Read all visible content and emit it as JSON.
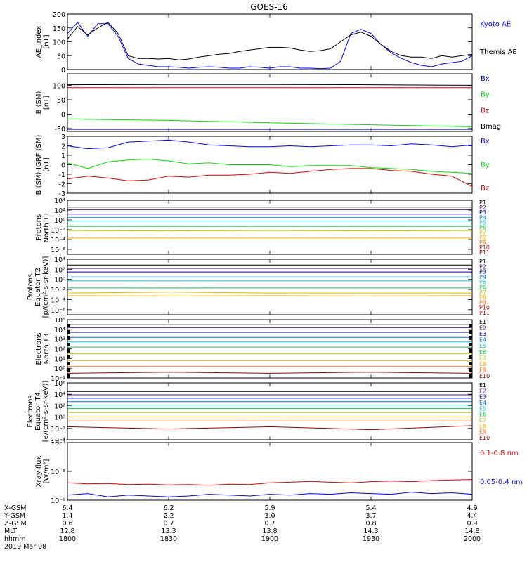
{
  "title": "GOES-16",
  "x_tick_labels": [
    "1800",
    "1830",
    "1900",
    "1930",
    "2000"
  ],
  "footer": {
    "rows": [
      {
        "label": "X-GSM",
        "values": [
          "6.4",
          "6.2",
          "5.9",
          "5.4",
          "4.9"
        ]
      },
      {
        "label": "Y-GSM",
        "values": [
          "1.4",
          "2.2",
          "3.0",
          "3.7",
          "4.4"
        ]
      },
      {
        "label": "Z-GSM",
        "values": [
          "0.6",
          "0.7",
          "0.7",
          "0.8",
          "0.9"
        ]
      },
      {
        "label": "MLT",
        "values": [
          "12.8",
          "13.3",
          "13.8",
          "14.3",
          "14.8"
        ]
      },
      {
        "label": "hhmm",
        "values": [
          "1800",
          "1830",
          "1900",
          "1930",
          "2000"
        ]
      }
    ],
    "date": "2019 Mar 08"
  },
  "chart_data": [
    {
      "type": "line",
      "ylabel": [
        "AE_index",
        "[nT]"
      ],
      "ylim": [
        0,
        200
      ],
      "yticks": [
        "0",
        "50",
        "100",
        "150",
        "200"
      ],
      "x": [
        "1800",
        "1803",
        "1806",
        "1809",
        "1812",
        "1815",
        "1818",
        "1821",
        "1824",
        "1827",
        "1830",
        "1833",
        "1836",
        "1839",
        "1842",
        "1845",
        "1848",
        "1851",
        "1854",
        "1857",
        "1900",
        "1903",
        "1906",
        "1909",
        "1912",
        "1915",
        "1918",
        "1921",
        "1924",
        "1927",
        "1930",
        "1933",
        "1936",
        "1939",
        "1942",
        "1945",
        "1948",
        "1951",
        "1954",
        "1957",
        "2000"
      ],
      "series": [
        {
          "name": "Kyoto AE",
          "color": "#0000ff",
          "values": [
            130,
            170,
            120,
            165,
            165,
            120,
            40,
            20,
            15,
            10,
            10,
            8,
            5,
            8,
            10,
            8,
            5,
            5,
            10,
            8,
            5,
            10,
            10,
            5,
            5,
            3,
            5,
            30,
            130,
            145,
            130,
            90,
            60,
            40,
            25,
            15,
            10,
            20,
            25,
            30,
            50
          ]
        },
        {
          "name": "Themis AE",
          "color": "#000000",
          "values": [
            110,
            155,
            125,
            150,
            170,
            130,
            50,
            40,
            40,
            38,
            40,
            35,
            38,
            45,
            50,
            55,
            58,
            65,
            70,
            75,
            80,
            80,
            78,
            70,
            65,
            68,
            75,
            100,
            125,
            135,
            120,
            90,
            65,
            50,
            45,
            45,
            40,
            50,
            45,
            50,
            55
          ]
        }
      ]
    },
    {
      "type": "line",
      "ylabel": [
        "B (SM)",
        "[nT]"
      ],
      "ylim": [
        -60,
        140
      ],
      "yticks": [
        "-50",
        "0",
        "50",
        "100"
      ],
      "x": [
        "1800",
        "1830",
        "1900",
        "1930",
        "2000"
      ],
      "series": [
        {
          "name": "Bx",
          "color": "#0000ff",
          "values": [
            -53,
            -53,
            -53,
            -53,
            -53
          ]
        },
        {
          "name": "By",
          "color": "#00dd00",
          "values": [
            -17,
            -22,
            -30,
            -37,
            -44
          ]
        },
        {
          "name": "Bz",
          "color": "#dd0000",
          "values": [
            92,
            92,
            92,
            92,
            92
          ]
        },
        {
          "name": "Bmag",
          "color": "#000000",
          "values": [
            102,
            103,
            103,
            102,
            100
          ]
        }
      ]
    },
    {
      "type": "line",
      "ylabel": [
        "B (SM)-IGRF (SM)",
        "[nT]"
      ],
      "ylim": [
        -3,
        3
      ],
      "yticks": [
        "-3",
        "-2",
        "-1",
        "0",
        "1",
        "2",
        "3"
      ],
      "x": [
        "1800",
        "1806",
        "1812",
        "1818",
        "1824",
        "1830",
        "1836",
        "1842",
        "1848",
        "1854",
        "1900",
        "1906",
        "1912",
        "1918",
        "1924",
        "1930",
        "1936",
        "1942",
        "1948",
        "1954",
        "2000"
      ],
      "series": [
        {
          "name": "Bx",
          "color": "#0000ff",
          "values": [
            2.0,
            1.7,
            1.8,
            2.4,
            2.5,
            2.6,
            2.4,
            2.1,
            2.0,
            1.9,
            1.9,
            2.0,
            1.9,
            2.0,
            2.1,
            2.1,
            2.0,
            2.2,
            2.1,
            1.9,
            2.1
          ]
        },
        {
          "name": "By",
          "color": "#00dd00",
          "values": [
            0.2,
            -0.4,
            0.3,
            0.5,
            0.6,
            0.4,
            0.1,
            0.2,
            0.0,
            0.0,
            0.0,
            -0.2,
            -0.1,
            -0.1,
            -0.1,
            -0.3,
            -0.4,
            -0.5,
            -0.7,
            -0.8,
            -0.9
          ]
        },
        {
          "name": "Bz",
          "color": "#dd0000",
          "values": [
            -1.5,
            -1.2,
            -1.4,
            -1.7,
            -1.6,
            -1.2,
            -1.3,
            -1.1,
            -1.1,
            -1.0,
            -0.8,
            -0.9,
            -0.7,
            -0.5,
            -0.4,
            -0.4,
            -0.6,
            -0.7,
            -1.0,
            -1.2,
            -2.3
          ]
        }
      ]
    },
    {
      "type": "line",
      "ylabel": [
        "Protons",
        "North T1"
      ],
      "log": true,
      "ylim_exp": [
        -7,
        4
      ],
      "ytick_exps": [
        4,
        2,
        0,
        -2,
        -4,
        -6
      ],
      "x": [
        "1800",
        "1830",
        "1900",
        "1930",
        "2000"
      ],
      "series": [
        {
          "name": "P1",
          "color": "#000000",
          "values": [
            400,
            400,
            400,
            400,
            400
          ]
        },
        {
          "name": "P2",
          "color": "#551a8b",
          "values": [
            120,
            120,
            120,
            120,
            120
          ]
        },
        {
          "name": "P3",
          "color": "#0000aa",
          "values": [
            15,
            15,
            15,
            15,
            15
          ]
        },
        {
          "name": "P4",
          "color": "#0077ee",
          "values": [
            3,
            3,
            3,
            3,
            3
          ]
        },
        {
          "name": "P5",
          "color": "#00cccc",
          "values": [
            0.6,
            0.6,
            0.6,
            0.6,
            0.6
          ]
        },
        {
          "name": "P6",
          "color": "#00cc44",
          "values": [
            0.05,
            0.05,
            0.05,
            0.05,
            0.05
          ]
        },
        {
          "name": "P7",
          "color": "#bbcc00",
          "values": [
            0.007,
            0.006,
            0.007,
            0.006,
            0.007
          ]
        },
        {
          "name": "P8",
          "color": "#ffaa00",
          "values": [
            0.0002,
            0.0002,
            0.0002,
            0.0002,
            0.0002
          ]
        },
        {
          "name": "P9",
          "color": "#ff6600",
          "values": [
            null,
            null,
            null,
            null,
            null
          ]
        },
        {
          "name": "P10",
          "color": "#dd0000",
          "values": [
            null,
            null,
            null,
            null,
            null
          ]
        },
        {
          "name": "P11",
          "color": "#990000",
          "values": [
            null,
            null,
            null,
            null,
            null
          ]
        }
      ]
    },
    {
      "type": "line",
      "ylabel": [
        "Protons",
        "Equator T2",
        "[p/(cm²-s-sr-keV)]"
      ],
      "log": true,
      "ylim_exp": [
        -7,
        4
      ],
      "ytick_exps": [
        4,
        2,
        0,
        -2,
        -4,
        -6
      ],
      "x": [
        "1800",
        "1830",
        "1900",
        "1930",
        "2000"
      ],
      "series": [
        {
          "name": "P1",
          "color": "#000000",
          "values": [
            700,
            700,
            700,
            700,
            700
          ]
        },
        {
          "name": "P2",
          "color": "#551a8b",
          "values": [
            150,
            150,
            150,
            150,
            150
          ]
        },
        {
          "name": "P3",
          "color": "#0000aa",
          "values": [
            30,
            30,
            30,
            30,
            30
          ]
        },
        {
          "name": "P4",
          "color": "#0077ee",
          "values": [
            3,
            3,
            3,
            3,
            3
          ]
        },
        {
          "name": "P5",
          "color": "#00cccc",
          "values": [
            0.5,
            0.5,
            0.5,
            0.5,
            0.5
          ]
        },
        {
          "name": "P6",
          "color": "#00cc44",
          "values": [
            0.02,
            0.02,
            0.02,
            0.02,
            0.02
          ]
        },
        {
          "name": "P7",
          "color": "#bbcc00",
          "values": [
            0.002,
            0.003,
            0.002,
            0.002,
            0.002
          ]
        },
        {
          "name": "P8",
          "color": "#ffaa00",
          "values": [
            0.0006,
            0.0005,
            0.0006,
            0.0005,
            0.0006
          ]
        },
        {
          "name": "P9",
          "color": "#ff6600",
          "values": [
            null,
            null,
            null,
            null,
            null
          ]
        },
        {
          "name": "P10",
          "color": "#dd0000",
          "values": [
            null,
            null,
            null,
            null,
            null
          ]
        },
        {
          "name": "P11",
          "color": "#990000",
          "values": [
            null,
            null,
            null,
            null,
            null
          ]
        }
      ]
    },
    {
      "type": "line",
      "ylabel": [
        "Electrons",
        "North T3"
      ],
      "log": true,
      "ylim_exp": [
        -1,
        5
      ],
      "ytick_exps": [
        5,
        4,
        3,
        2,
        1,
        0,
        -1
      ],
      "x": [
        "1800",
        "1830",
        "1900",
        "1930",
        "2000"
      ],
      "series": [
        {
          "name": "E1",
          "color": "#000000",
          "values": [
            30000,
            30000,
            30000,
            30000,
            30000
          ]
        },
        {
          "name": "E2",
          "color": "#551a8b",
          "values": [
            15000,
            15000,
            15000,
            15000,
            15000
          ]
        },
        {
          "name": "E3",
          "color": "#0000aa",
          "values": [
            5000,
            5000,
            5000,
            5000,
            5000
          ]
        },
        {
          "name": "E4",
          "color": "#0077ee",
          "values": [
            1500,
            1500,
            1500,
            1500,
            1500
          ]
        },
        {
          "name": "E5",
          "color": "#00cccc",
          "values": [
            500,
            500,
            500,
            500,
            500
          ]
        },
        {
          "name": "E6",
          "color": "#00cc44",
          "values": [
            150,
            150,
            150,
            150,
            150
          ]
        },
        {
          "name": "E7",
          "color": "#bbcc00",
          "values": [
            30,
            30,
            30,
            30,
            30
          ]
        },
        {
          "name": "E8",
          "color": "#ffaa00",
          "values": [
            6,
            6,
            6,
            6,
            6
          ]
        },
        {
          "name": "E9",
          "color": "#ff6600",
          "values": [
            1.5,
            1.5,
            1.5,
            1.5,
            1.5
          ]
        },
        {
          "name": "E10",
          "color": "#990000",
          "values": [
            0.3,
            0.4,
            0.3,
            0.4,
            0.3
          ]
        }
      ]
    },
    {
      "type": "line",
      "ylabel": [
        "Electrons",
        "Equator T4",
        "[e/(cm²-s-sr-keV)]"
      ],
      "log": true,
      "ylim_exp": [
        -4,
        6
      ],
      "ytick_exps": [
        6,
        4,
        2,
        0,
        -2,
        -4
      ],
      "x": [
        "1800",
        "1830",
        "1900",
        "1930",
        "2000"
      ],
      "series": [
        {
          "name": "E1",
          "color": "#000000",
          "values": [
            30000,
            30000,
            30000,
            30000,
            30000
          ]
        },
        {
          "name": "E2",
          "color": "#551a8b",
          "values": [
            8000,
            8000,
            8000,
            8000,
            8000
          ]
        },
        {
          "name": "E3",
          "color": "#0000aa",
          "values": [
            2000,
            2000,
            2000,
            2000,
            2000
          ]
        },
        {
          "name": "E4",
          "color": "#0077ee",
          "values": [
            500,
            500,
            500,
            500,
            500
          ]
        },
        {
          "name": "E5",
          "color": "#00cccc",
          "values": [
            120,
            120,
            120,
            120,
            120
          ]
        },
        {
          "name": "E6",
          "color": "#00cc44",
          "values": [
            30,
            30,
            30,
            30,
            30
          ]
        },
        {
          "name": "E7",
          "color": "#bbcc00",
          "values": [
            6,
            6,
            6,
            6,
            6
          ]
        },
        {
          "name": "E8",
          "color": "#ffaa00",
          "values": [
            1,
            1,
            1,
            1,
            1
          ]
        },
        {
          "name": "E9",
          "color": "#ff6600",
          "values": [
            0.2,
            0.2,
            0.2,
            0.2,
            0.2
          ]
        },
        {
          "name": "E10",
          "color": "#990000",
          "values": [
            0.02,
            0.008,
            0.02,
            0.006,
            0.03
          ]
        }
      ]
    },
    {
      "type": "line",
      "ylabel": [
        "Xray flux",
        "[W/m²]"
      ],
      "log": true,
      "ylim_exp": [
        -9,
        -7
      ],
      "ytick_exps": [
        -7,
        -8,
        -9
      ],
      "x": [
        "1800",
        "1806",
        "1812",
        "1818",
        "1824",
        "1830",
        "1836",
        "1842",
        "1848",
        "1854",
        "1900",
        "1906",
        "1912",
        "1918",
        "1924",
        "1930",
        "1936",
        "1942",
        "1948",
        "1954",
        "2000"
      ],
      "series": [
        {
          "name": "0.1-0.8 nm",
          "color": "#dd0000",
          "values": [
            4e-09,
            3.7e-09,
            3.8e-09,
            3.5e-09,
            3.6e-09,
            3.4e-09,
            3.5e-09,
            3.3e-09,
            3.6e-09,
            3.5e-09,
            4e-09,
            4.2e-09,
            4.5e-09,
            4.2e-09,
            4e-09,
            4.4e-09,
            4.6e-09,
            4.4e-09,
            4.8e-09,
            5e-09,
            5.2e-09
          ]
        },
        {
          "name": "0.05-0.4 nm",
          "color": "#0000ff",
          "values": [
            1.5e-09,
            1.7e-09,
            1.3e-09,
            1.5e-09,
            1.4e-09,
            1.3e-09,
            1.4e-09,
            1.6e-09,
            1.5e-09,
            1.4e-09,
            1.6e-09,
            1.5e-09,
            1.7e-09,
            1.6e-09,
            1.8e-09,
            1.7e-09,
            1.6e-09,
            1.9e-09,
            1.7e-09,
            1.8e-09,
            1.6e-09
          ]
        }
      ]
    }
  ]
}
